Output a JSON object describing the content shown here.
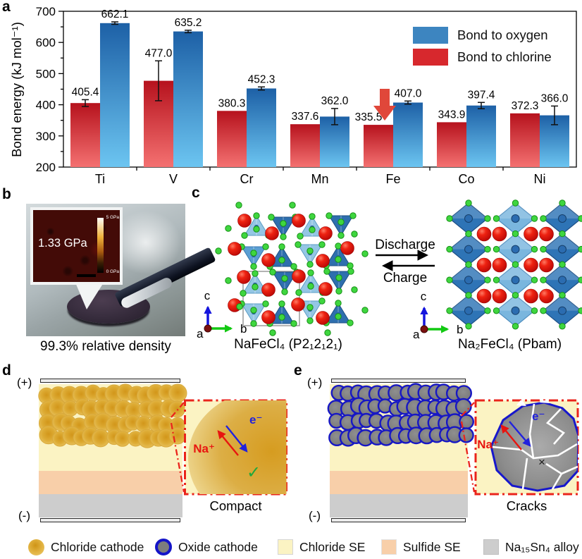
{
  "panel_labels": {
    "a": "a",
    "b": "b",
    "c": "c",
    "d": "d",
    "e": "e"
  },
  "chart_data": {
    "type": "bar",
    "title": "",
    "ylabel": "Bond energy (kJ mol⁻¹)",
    "xlabel": "",
    "ylim": [
      200,
      700
    ],
    "ytick_major": 100,
    "ytick_minor": 50,
    "categories": [
      "Ti",
      "V",
      "Cr",
      "Mn",
      "Fe",
      "Co",
      "Ni"
    ],
    "series": [
      {
        "name": "Bond to chlorine",
        "color": "#d7282d",
        "gradient": [
          "#b6121d",
          "#f47171"
        ],
        "values": [
          405.4,
          477.0,
          380.3,
          337.6,
          335.5,
          343.9,
          372.3
        ],
        "errors": [
          11,
          64,
          0,
          0,
          0,
          0,
          0
        ]
      },
      {
        "name": "Bond to oxygen",
        "color": "#3d85c0",
        "gradient": [
          "#1d60a6",
          "#6cc5f1"
        ],
        "values": [
          662.1,
          635.2,
          452.3,
          362.0,
          407.0,
          397.4,
          366.0
        ],
        "errors": [
          4,
          4,
          5,
          26,
          5,
          10,
          30
        ]
      }
    ],
    "legend_position": "top-right",
    "grid": false,
    "annotation": {
      "type": "down-arrow",
      "category": "Fe",
      "series": "Bond to chlorine",
      "color": "#e0473a"
    }
  },
  "panel_b": {
    "inset_value": "1.33 GPa",
    "scale_top": "5 GPa",
    "scale_bottom": "0 GPa",
    "caption": "99.3% relative density"
  },
  "panel_c": {
    "discharge": "Discharge",
    "charge": "Charge",
    "left_caption": "NaFeCl₄ (P2₁2₁2₁)",
    "right_caption": "Na₂FeCl₄ (Pbam)",
    "axes": {
      "a": "a",
      "b": "b",
      "c": "c"
    }
  },
  "panel_d": {
    "positive": "(+)",
    "negative": "(-)",
    "ion": "Na⁺",
    "electron": "e⁻",
    "check": "✓",
    "caption": "Compact"
  },
  "panel_e": {
    "positive": "(+)",
    "negative": "(-)",
    "ion": "Na⁺",
    "electron": "e⁻",
    "cross": "×",
    "caption": "Cracks"
  },
  "bottom_legend": {
    "items": [
      {
        "key": "chloride-cathode",
        "label": "Chloride cathode"
      },
      {
        "key": "oxide-cathode",
        "label": "Oxide cathode"
      },
      {
        "key": "chloride-se",
        "label": "Chloride SE"
      },
      {
        "key": "sulfide-se",
        "label": "Sulfide SE"
      },
      {
        "key": "alloy",
        "label": "Na₁₅Sn₄ alloy"
      }
    ]
  },
  "colors": {
    "chloride_se": "#fbf3c3",
    "sulfide_se": "#f8cfa9",
    "alloy": "#cdcdcd",
    "oxide_fill": "#7d7d7d",
    "oxide_border": "#1414c8",
    "inset_border": "#ea241c"
  }
}
